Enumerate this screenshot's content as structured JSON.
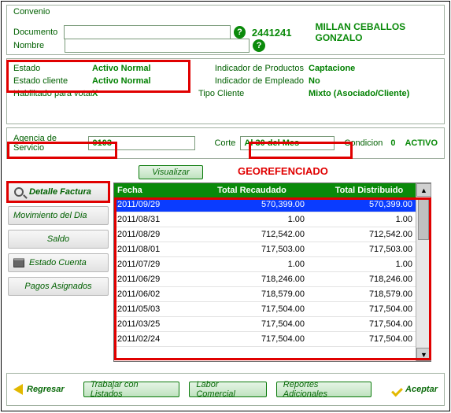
{
  "panelTop": {
    "convenio": "Convenio",
    "documentoLabel": "Documento",
    "nombreLabel": "Nombre",
    "documentoValue": "",
    "nombreValue": "",
    "docNumber": "2441241",
    "docName": "MILLAN CEBALLOS GONZALO"
  },
  "panelMid": {
    "estadoLabel": "Estado",
    "estadoValue": "Activo Normal",
    "indProdLabel": "Indicador de Productos",
    "indProdValue": "Captacione",
    "estadoClienteLabel": "Estado cliente",
    "estadoClienteValue": "Activo Normal",
    "indEmpLabel": "Indicador de Empleado",
    "indEmpValue": "No",
    "habLabel": "Habilitado para votar",
    "habValue": "X",
    "tipoClienteLabel": "Tipo Cliente",
    "tipoClienteValue": "Mixto (Asociado/Cliente)"
  },
  "panelAg": {
    "agenciaLabel": "Agencia de Servicio",
    "agenciaValue": "0103",
    "corteLabel": "Corte",
    "corteValue": "Al 30 del Mes",
    "condicionLabel": "Condicion",
    "condicionCode": "0",
    "condicionValue": "ACTIVO"
  },
  "visualizar": "Visualizar",
  "georef": "GEOREFENCIADO",
  "nav": {
    "detalle": "Detalle Factura",
    "movdia": "Movimiento del Dia",
    "saldo": "Saldo",
    "estadoCuenta": "Estado Cuenta",
    "pagos": "Pagos Asignados"
  },
  "table": {
    "cols": [
      "Fecha",
      "Total Recaudado",
      "Total Distribuido"
    ],
    "colWidths": [
      "104px",
      "142px",
      "1fr"
    ],
    "colAlign": [
      "left",
      "center",
      "center"
    ],
    "selectedIndex": 0,
    "rows": [
      [
        "2011/09/29",
        "570,399.00",
        "570,399.00"
      ],
      [
        "2011/08/31",
        "1.00",
        "1.00"
      ],
      [
        "2011/08/29",
        "712,542.00",
        "712,542.00"
      ],
      [
        "2011/08/01",
        "717,503.00",
        "717,503.00"
      ],
      [
        "2011/07/29",
        "1.00",
        "1.00"
      ],
      [
        "2011/06/29",
        "718,246.00",
        "718,246.00"
      ],
      [
        "2011/06/02",
        "718,579.00",
        "718,579.00"
      ],
      [
        "2011/05/03",
        "717,504.00",
        "717,504.00"
      ],
      [
        "2011/03/25",
        "717,504.00",
        "717,504.00"
      ],
      [
        "2011/02/24",
        "717,504.00",
        "717,504.00"
      ]
    ]
  },
  "footer": {
    "regresar": "Regresar",
    "trabajar": "Trabajar con Listados",
    "labor": "Labor Comercial",
    "reportes": "Reportes Adicionales",
    "aceptar": "Aceptar"
  },
  "colors": {
    "greenText": "#006000",
    "greenBold": "#0a8a0a",
    "red": "#e00000",
    "selRow": "#0a3cff",
    "headerBg": "#0a8a0a"
  }
}
